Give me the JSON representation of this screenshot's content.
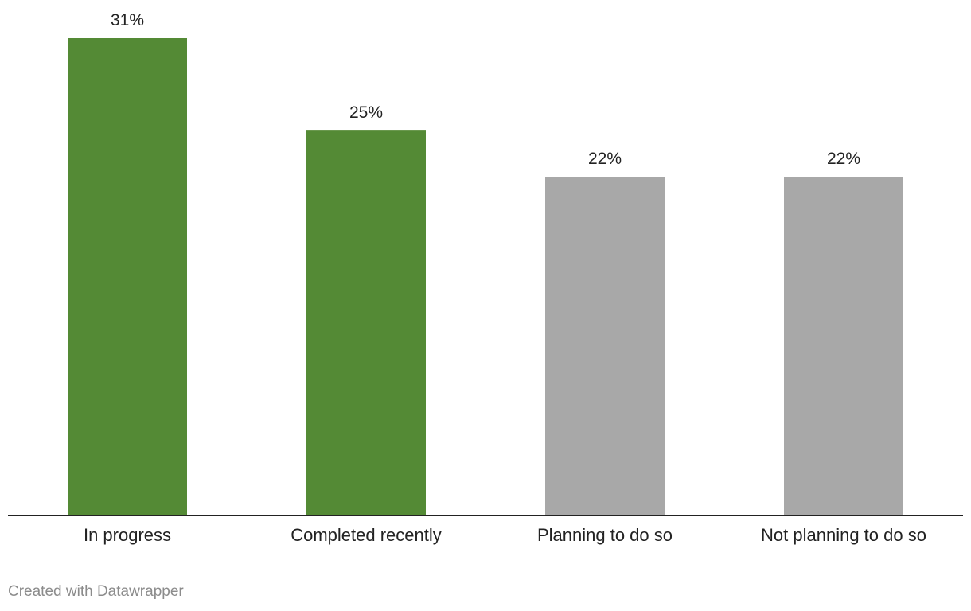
{
  "chart_data": {
    "type": "bar",
    "categories": [
      "In progress",
      "Completed recently",
      "Planning to do so",
      "Not planning to do so"
    ],
    "values": [
      31,
      25,
      22,
      22
    ],
    "value_labels": [
      "31%",
      "25%",
      "22%",
      "22%"
    ],
    "bar_colors": [
      "#548a35",
      "#548a35",
      "#a8a8a8",
      "#a8a8a8"
    ],
    "title": "",
    "xlabel": "",
    "ylabel": "",
    "ylim": [
      0,
      31
    ],
    "grid": false,
    "legend": "none"
  },
  "colors": {
    "highlight": "#548a35",
    "neutral": "#a8a8a8",
    "axis": "#222222",
    "text": "#222222",
    "footer": "#8c8c8c"
  },
  "footer": {
    "credit": "Created with Datawrapper"
  }
}
